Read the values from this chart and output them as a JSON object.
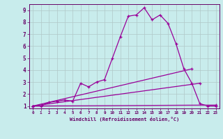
{
  "background_color": "#c8ecec",
  "line_color": "#990099",
  "grid_color": "#b0c8c8",
  "xlabel": "Windchill (Refroidissement éolien,°C)",
  "xlabel_color": "#660066",
  "tick_color": "#660066",
  "xlim": [
    -0.5,
    23.5
  ],
  "ylim": [
    0.8,
    9.5
  ],
  "yticks": [
    1,
    2,
    3,
    4,
    5,
    6,
    7,
    8,
    9
  ],
  "xticks": [
    0,
    1,
    2,
    3,
    4,
    5,
    6,
    7,
    8,
    9,
    10,
    11,
    12,
    13,
    14,
    15,
    16,
    17,
    18,
    19,
    20,
    21,
    22,
    23
  ],
  "series": [
    {
      "x": [
        0,
        1,
        2,
        3,
        4,
        5,
        6,
        7,
        8,
        9,
        10,
        11,
        12,
        13,
        14,
        15,
        16,
        17,
        18,
        19,
        20,
        21,
        22,
        23
      ],
      "y": [
        1.0,
        1.0,
        1.3,
        1.4,
        1.5,
        1.4,
        2.9,
        2.6,
        3.0,
        3.2,
        5.0,
        6.8,
        8.5,
        8.6,
        9.2,
        8.2,
        8.6,
        7.9,
        6.2,
        4.1,
        2.9,
        1.2,
        1.0,
        1.0
      ]
    },
    {
      "x": [
        0,
        20
      ],
      "y": [
        1.0,
        4.1
      ]
    },
    {
      "x": [
        0,
        21
      ],
      "y": [
        1.0,
        2.9
      ]
    },
    {
      "x": [
        0,
        23
      ],
      "y": [
        1.0,
        1.08
      ]
    }
  ]
}
